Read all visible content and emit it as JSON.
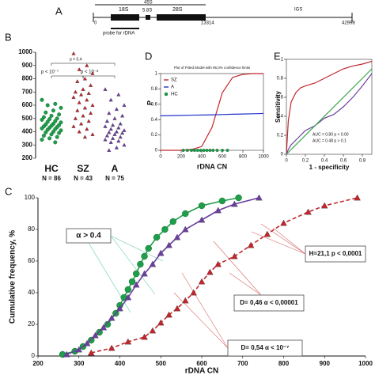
{
  "diagram": {
    "label": "A",
    "s18": "18S",
    "s58": "5.8S",
    "span": "45S",
    "s28": "28S",
    "region": "IGS",
    "start": "0",
    "mid": "13314",
    "end": "42998",
    "probe": "probe for rDNA"
  },
  "chart_data": [
    {
      "type": "strip",
      "label": "B",
      "categories": [
        "HC",
        "SZ",
        "A"
      ],
      "counts": [
        "N = 86",
        "N = 43",
        "N = 75"
      ],
      "ylim": [
        200,
        1000
      ],
      "yticks": [
        200,
        300,
        400,
        500,
        600,
        700,
        800,
        900,
        1000
      ],
      "annotations": [
        "p = 0.4",
        "p < 10⁻⁷",
        "p < 10⁻⁸"
      ],
      "groups": [
        {
          "color": "#1f9e4a",
          "marker": "circle",
          "values": [
            640,
            610,
            600,
            580,
            560,
            545,
            530,
            520,
            510,
            500,
            495,
            490,
            480,
            475,
            470,
            460,
            455,
            450,
            445,
            440,
            435,
            430,
            425,
            420,
            415,
            410,
            400,
            395,
            390,
            380,
            370,
            360,
            350,
            340,
            320
          ]
        },
        {
          "color": "#c0262c",
          "marker": "triangle",
          "values": [
            990,
            900,
            870,
            840,
            800,
            780,
            750,
            720,
            700,
            690,
            680,
            660,
            640,
            620,
            600,
            580,
            560,
            540,
            520,
            500,
            480,
            460,
            440,
            420,
            400,
            380,
            360
          ]
        },
        {
          "color": "#6b3fa0",
          "marker": "triangle",
          "values": [
            720,
            680,
            640,
            600,
            570,
            540,
            520,
            500,
            480,
            460,
            450,
            440,
            430,
            420,
            410,
            400,
            395,
            390,
            380,
            370,
            360,
            350,
            340,
            330,
            320,
            300,
            280,
            260
          ]
        }
      ]
    },
    {
      "type": "line",
      "label": "C",
      "y_label": "Cumulative frequency, %",
      "x_label": "rDNA CN",
      "xlim": [
        200,
        1000
      ],
      "xticks": [
        200,
        300,
        400,
        500,
        600,
        700,
        800,
        900,
        1000
      ],
      "ylim": [
        0,
        100
      ],
      "yticks": [
        0,
        20,
        40,
        60,
        80,
        100
      ],
      "annotations": [
        "α > 0.4",
        "H=21,1    p < 0,0001",
        "D= 0,46  α < 0,00001",
        "D= 0,54  α < 10⁻⁷"
      ],
      "series": [
        {
          "color": "#1f9e4a",
          "marker": "circle",
          "line": true,
          "dash": false,
          "x": [
            260,
            290,
            310,
            330,
            350,
            370,
            390,
            400,
            410,
            420,
            430,
            440,
            450,
            460,
            470,
            490,
            510,
            530,
            560,
            600,
            650,
            690
          ],
          "values": [
            1,
            3,
            6,
            10,
            15,
            20,
            27,
            32,
            37,
            42,
            47,
            52,
            58,
            63,
            68,
            75,
            80,
            85,
            90,
            95,
            98,
            100
          ]
        },
        {
          "color": "#c0262c",
          "marker": "triangle",
          "line": true,
          "dash": true,
          "x": [
            330,
            380,
            420,
            460,
            480,
            500,
            520,
            540,
            560,
            580,
            600,
            620,
            640,
            680,
            720,
            760,
            800,
            860,
            900,
            980
          ],
          "values": [
            2,
            5,
            9,
            12,
            16,
            21,
            26,
            30,
            35,
            40,
            47,
            53,
            58,
            63,
            70,
            77,
            84,
            91,
            95,
            100
          ]
        },
        {
          "color": "#6b3fa0",
          "marker": "triangle",
          "line": true,
          "dash": false,
          "x": [
            270,
            300,
            320,
            340,
            360,
            380,
            400,
            420,
            440,
            460,
            480,
            500,
            520,
            540,
            560,
            600,
            640,
            680,
            740
          ],
          "values": [
            1,
            4,
            8,
            13,
            18,
            24,
            30,
            37,
            45,
            52,
            58,
            65,
            70,
            75,
            80,
            86,
            92,
            96,
            100
          ]
        }
      ]
    },
    {
      "type": "line",
      "label": "D",
      "title": "Plot of Fitted Model with 95,0% confidence limits",
      "y_label": "P",
      "x_label": "rDNA CN",
      "xlim": [
        0,
        1000
      ],
      "xticks": [
        0,
        200,
        400,
        600,
        800,
        1000
      ],
      "ylim": [
        0,
        1
      ],
      "yticks": [
        0,
        0.2,
        0.4,
        0.6,
        0.8,
        1
      ],
      "legend": "upper left",
      "series": [
        {
          "name": "SZ",
          "color": "#c0262c",
          "marker": null,
          "line": true,
          "dash": false,
          "x": [
            0,
            100,
            200,
            300,
            400,
            500,
            600,
            700,
            800,
            900,
            1000
          ],
          "values": [
            0,
            0,
            0,
            0.01,
            0.05,
            0.3,
            0.75,
            0.95,
            0.99,
            1,
            1
          ]
        },
        {
          "name": "A",
          "color": "#2233cc",
          "marker": null,
          "line": true,
          "dash": false,
          "x": [
            0,
            100,
            200,
            300,
            400,
            500,
            600,
            700,
            800,
            900,
            1000
          ],
          "values": [
            0.45,
            0.452,
            0.455,
            0.458,
            0.46,
            0.463,
            0.466,
            0.47,
            0.473,
            0.476,
            0.48
          ]
        },
        {
          "name": "HC",
          "color": "#1f9e4a",
          "marker": "circle",
          "line": false,
          "dash": false,
          "x": [
            220,
            260,
            300,
            330,
            360,
            390,
            420,
            450,
            480,
            510,
            550,
            600,
            650
          ],
          "values": [
            0,
            0,
            0,
            0,
            0,
            0,
            0,
            0,
            0,
            0,
            0,
            0,
            0
          ]
        }
      ]
    },
    {
      "type": "line",
      "label": "E",
      "y_label": "Sensitivity",
      "x_label": "1 - specificity",
      "xlim": [
        0,
        0.9
      ],
      "xticks": [
        0,
        0.2,
        0.4,
        0.6,
        0.8
      ],
      "ylim": [
        0,
        1
      ],
      "yticks": [
        0,
        0.2,
        0.4,
        0.6,
        0.8,
        1
      ],
      "annotations": [
        "AUC = 0.80   p < 0.00",
        "AUC = 0.48   p > 0.1"
      ],
      "annotation_colors": [
        "#c0262c",
        "#6b3fa0"
      ],
      "series": [
        {
          "color": "#c0262c",
          "marker": null,
          "line": true,
          "dash": false,
          "x": [
            0,
            0.02,
            0.05,
            0.1,
            0.15,
            0.2,
            0.3,
            0.4,
            0.5,
            0.6,
            0.7,
            0.8,
            0.9
          ],
          "values": [
            0,
            0.35,
            0.55,
            0.65,
            0.7,
            0.72,
            0.75,
            0.8,
            0.85,
            0.9,
            0.93,
            0.95,
            0.98
          ]
        },
        {
          "color": "#6b3fa0",
          "marker": null,
          "line": true,
          "dash": false,
          "x": [
            0,
            0.02,
            0.05,
            0.1,
            0.15,
            0.2,
            0.3,
            0.4,
            0.5,
            0.6,
            0.7,
            0.8,
            0.9
          ],
          "values": [
            0,
            0.05,
            0.1,
            0.15,
            0.2,
            0.25,
            0.3,
            0.38,
            0.42,
            0.5,
            0.6,
            0.72,
            0.85
          ]
        },
        {
          "color": "#3aa64a",
          "marker": null,
          "line": true,
          "dash": false,
          "x": [
            0,
            0.9
          ],
          "values": [
            0,
            0.9
          ]
        }
      ]
    }
  ]
}
